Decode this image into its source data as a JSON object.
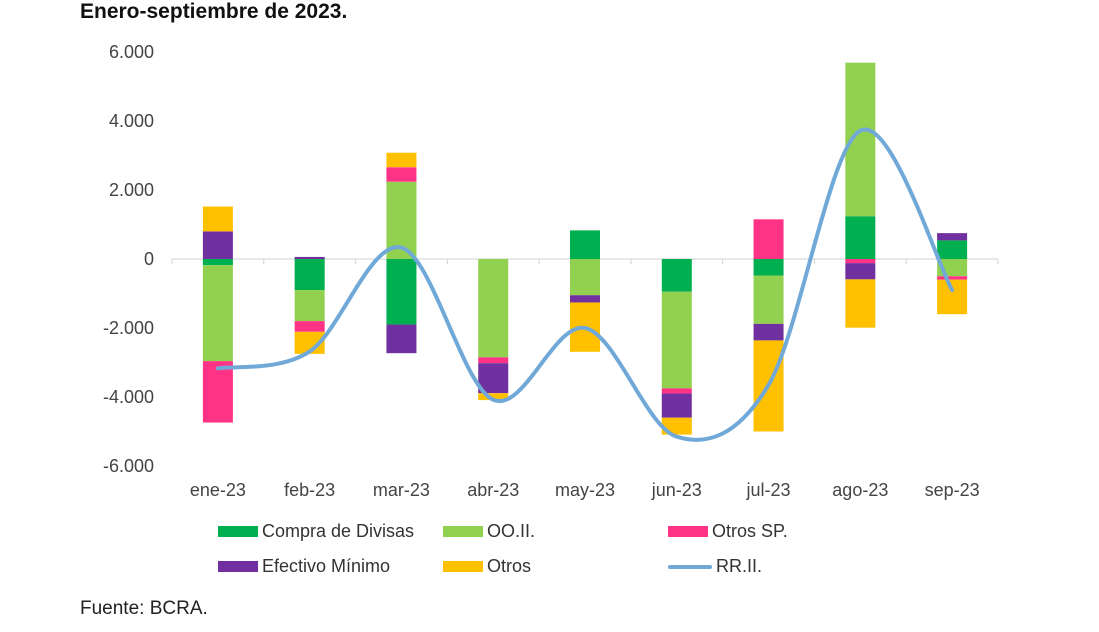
{
  "title": "Enero-septiembre de 2023.",
  "source": "Fuente: BCRA.",
  "chart_data": {
    "type": "bar",
    "stacked": true,
    "categories": [
      "ene-23",
      "feb-23",
      "mar-23",
      "abr-23",
      "may-23",
      "jun-23",
      "jul-23",
      "ago-23",
      "sep-23"
    ],
    "ylim": [
      -6000,
      6000
    ],
    "yticks": [
      6000,
      4000,
      2000,
      0,
      -2000,
      -4000,
      -6000
    ],
    "ytick_labels": [
      "6.000",
      "4.000",
      "2.000",
      "0",
      "-2.000",
      "-4.000",
      "-6.000"
    ],
    "series": [
      {
        "name": "Compra de Divisas",
        "color": "#00b050",
        "values": [
          -180,
          -900,
          -1900,
          0,
          830,
          -950,
          -480,
          1240,
          540
        ]
      },
      {
        "name": "OO.II.",
        "color": "#92d050",
        "values": [
          -2780,
          -900,
          2240,
          -2850,
          -1050,
          -2800,
          -1400,
          4450,
          -500
        ]
      },
      {
        "name": "Otros SP.",
        "color": "#ff3385",
        "values": [
          -1780,
          -310,
          420,
          -170,
          0,
          -150,
          1150,
          -120,
          -100
        ]
      },
      {
        "name": "Efectivo Mínimo",
        "color": "#7030a0",
        "values": [
          800,
          60,
          -830,
          -870,
          -210,
          -700,
          -480,
          -470,
          210
        ]
      },
      {
        "name": "Otros",
        "color": "#ffc000",
        "values": [
          720,
          -640,
          420,
          -200,
          -1430,
          -490,
          -2640,
          -1400,
          -1000
        ]
      }
    ],
    "line_series": {
      "name": "RR.II.",
      "color": "#70a8d8",
      "values": [
        -3170,
        -2680,
        330,
        -4080,
        -2000,
        -5150,
        -3650,
        3720,
        -900
      ]
    },
    "legend": [
      {
        "label": "Compra de Divisas",
        "type": "bar",
        "color": "#00b050"
      },
      {
        "label": "OO.II.",
        "type": "bar",
        "color": "#92d050"
      },
      {
        "label": "Otros SP.",
        "type": "bar",
        "color": "#ff3385"
      },
      {
        "label": "Efectivo Mínimo",
        "type": "bar",
        "color": "#7030a0"
      },
      {
        "label": "Otros",
        "type": "bar",
        "color": "#ffc000"
      },
      {
        "label": "RR.II.",
        "type": "line",
        "color": "#70a8d8"
      }
    ],
    "legend_position": "bottom",
    "grid": false
  }
}
